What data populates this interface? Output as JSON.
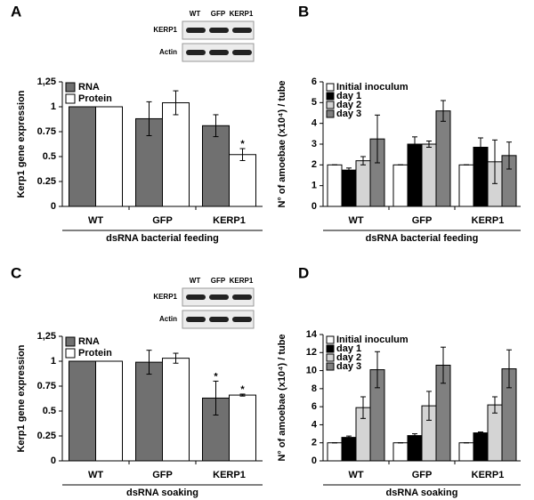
{
  "chart_data": [
    {
      "type": "bar",
      "label": "A",
      "ylabel": "Kerp1 gene expression",
      "xlabel": "dsRNA bacterial feeding",
      "categories": [
        "WT",
        "GFP",
        "KERP1"
      ],
      "series": [
        {
          "name": "RNA",
          "color": "#707070",
          "values": [
            1,
            0.88,
            0.81
          ],
          "errors": [
            0,
            0.17,
            0.11
          ]
        },
        {
          "name": "Protein",
          "color": "#ffffff",
          "values": [
            1,
            1.04,
            0.52
          ],
          "errors": [
            0,
            0.12,
            0.06
          ],
          "marks": [
            null,
            null,
            "*"
          ]
        }
      ],
      "ylim": [
        0,
        1.25
      ],
      "yticks": [
        0,
        0.25,
        0.5,
        0.75,
        1,
        {
          "value": 1.25,
          "label": "1,25"
        }
      ],
      "legend": "upper left"
    },
    {
      "type": "bar",
      "label": "B",
      "ylabel": "N° of amoebae (x10⁴) / tube",
      "xlabel": "dsRNA bacterial feeding",
      "categories": [
        "WT",
        "GFP",
        "KERP1"
      ],
      "series": [
        {
          "name": "Initial inoculum",
          "color": "#ffffff",
          "values": [
            2,
            2,
            2
          ],
          "errors": [
            0,
            0,
            0
          ]
        },
        {
          "name": "day 1",
          "color": "#000000",
          "values": [
            1.75,
            3.0,
            2.85
          ],
          "errors": [
            0.1,
            0.35,
            0.45
          ]
        },
        {
          "name": "day 2",
          "color": "#d4d4d4",
          "values": [
            2.2,
            3.0,
            2.15
          ],
          "errors": [
            0.2,
            0.15,
            1.05
          ]
        },
        {
          "name": "day 3",
          "color": "#808080",
          "values": [
            3.25,
            4.6,
            2.45
          ],
          "errors": [
            1.15,
            0.5,
            0.65
          ]
        }
      ],
      "ylim": [
        0,
        6
      ],
      "yticks": [
        0,
        1,
        2,
        3,
        4,
        5,
        6
      ],
      "legend": "upper left"
    },
    {
      "type": "bar",
      "label": "C",
      "ylabel": "Kerp1 gene expression",
      "xlabel": "dsRNA soaking",
      "categories": [
        "WT",
        "GFP",
        "KERP1"
      ],
      "series": [
        {
          "name": "RNA",
          "color": "#707070",
          "values": [
            1,
            0.99,
            0.63
          ],
          "errors": [
            0,
            0.12,
            0.17
          ],
          "marks": [
            null,
            null,
            "*"
          ]
        },
        {
          "name": "Protein",
          "color": "#ffffff",
          "values": [
            1,
            1.03,
            0.66
          ],
          "errors": [
            0,
            0.05,
            0.01
          ],
          "marks": [
            null,
            null,
            "*"
          ]
        }
      ],
      "ylim": [
        0,
        1.25
      ],
      "yticks": [
        0,
        0.25,
        0.5,
        0.75,
        1,
        {
          "value": 1.25,
          "label": "1,25"
        }
      ],
      "legend": "upper left"
    },
    {
      "type": "bar",
      "label": "D",
      "ylabel": "N° of amoebae (x10⁴) / tube",
      "xlabel": "dsRNA soaking",
      "categories": [
        "WT",
        "GFP",
        "KERP1"
      ],
      "series": [
        {
          "name": "Initial inoculum",
          "color": "#ffffff",
          "values": [
            2,
            2,
            2
          ],
          "errors": [
            0,
            0,
            0
          ]
        },
        {
          "name": "day 1",
          "color": "#000000",
          "values": [
            2.6,
            2.8,
            3.1
          ],
          "errors": [
            0.15,
            0.2,
            0.1
          ]
        },
        {
          "name": "day 2",
          "color": "#d4d4d4",
          "values": [
            5.9,
            6.1,
            6.2
          ],
          "errors": [
            1.2,
            1.6,
            0.9
          ]
        },
        {
          "name": "day 3",
          "color": "#808080",
          "values": [
            10.1,
            10.6,
            10.2
          ],
          "errors": [
            2.0,
            2.0,
            2.1
          ]
        }
      ],
      "ylim": [
        0,
        14
      ],
      "yticks": [
        0,
        2,
        4,
        6,
        8,
        10,
        12,
        14
      ],
      "legend": "upper left"
    }
  ],
  "blots": [
    {
      "columns": [
        "WT",
        "GFP",
        "KERP1"
      ],
      "rows": [
        "KERP1",
        "Actin"
      ]
    },
    {
      "columns": [
        "WT",
        "GFP",
        "KERP1"
      ],
      "rows": [
        "KERP1",
        "Actin"
      ]
    }
  ]
}
